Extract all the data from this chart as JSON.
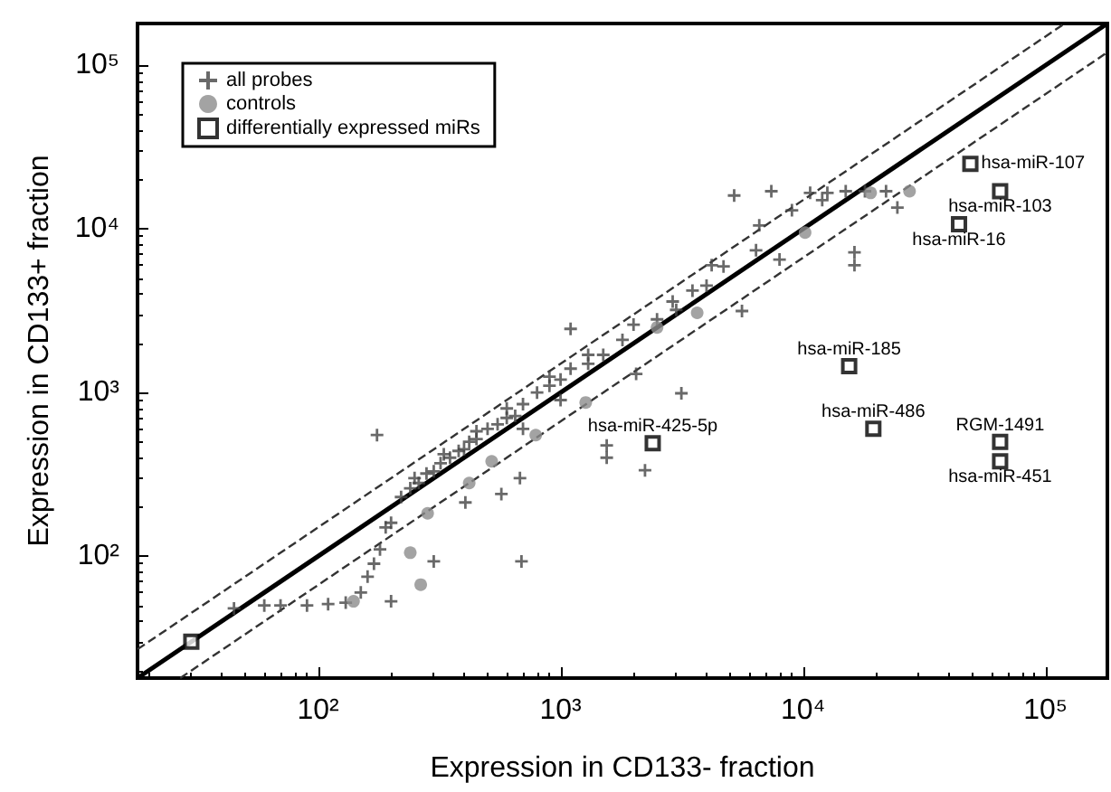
{
  "chart_data": {
    "type": "scatter",
    "xlabel": "Expression in CD133- fraction",
    "ylabel": "Expression in CD133+ fraction",
    "log": "xy",
    "grid": false,
    "legend": "top left",
    "xlim": [
      18,
      180000
    ],
    "ylim": [
      18,
      180000
    ],
    "xticks": [
      {
        "value": 100,
        "label": "10²"
      },
      {
        "value": 1000,
        "label": "10³"
      },
      {
        "value": 10000,
        "label": "10⁴"
      },
      {
        "value": 100000,
        "label": "10⁵"
      }
    ],
    "yticks": [
      {
        "value": 100,
        "label": "10²"
      },
      {
        "value": 1000,
        "label": "10³"
      },
      {
        "value": 10000,
        "label": "10⁴"
      },
      {
        "value": 100000,
        "label": "10⁵"
      }
    ],
    "series": [
      {
        "type": "line",
        "color": "#000000",
        "line_style": "solid",
        "marker": "none",
        "x": [
          18,
          180000
        ],
        "values": [
          18,
          180000
        ]
      },
      {
        "type": "line",
        "color": "#333333",
        "line_style": "dashed",
        "marker": "none",
        "x": [
          18,
          120000
        ],
        "values": [
          27,
          180000
        ]
      },
      {
        "type": "line",
        "color": "#333333",
        "line_style": "dashed",
        "marker": "none",
        "x": [
          27,
          180000
        ],
        "values": [
          18,
          120000
        ]
      },
      {
        "name": "all probes",
        "color": "#444444",
        "marker": "cross",
        "x": [
          45,
          60,
          70,
          90,
          110,
          130,
          150,
          160,
          170,
          180,
          190,
          200,
          220,
          240,
          260,
          280,
          300,
          320,
          350,
          380,
          400,
          420,
          450,
          500,
          550,
          600,
          650,
          700,
          800,
          900,
          1000,
          1100,
          1300,
          1500,
          1800,
          2000,
          2500,
          3000,
          3500,
          4000,
          9000,
          12000,
          15000,
          18000,
          22000,
          1100,
          175,
          300,
          200,
          690,
          405,
          680,
          570,
          1550,
          1550,
          2230,
          2050,
          5200,
          7400,
          6600,
          6400,
          16300,
          16300,
          24500,
          8000,
          5600,
          4700,
          2900,
          12600,
          10700,
          4200,
          3150,
          250,
          330,
          450,
          600,
          900,
          1300,
          700,
          1000
        ],
        "values": [
          48,
          50,
          50,
          50,
          51,
          52,
          60,
          75,
          90,
          110,
          150,
          160,
          230,
          260,
          280,
          320,
          330,
          370,
          400,
          440,
          450,
          500,
          520,
          600,
          640,
          700,
          720,
          850,
          1000,
          1100,
          1200,
          1400,
          1500,
          1700,
          2100,
          2600,
          2800,
          3200,
          4200,
          4500,
          13000,
          15000,
          17000,
          17000,
          17000,
          2450,
          550,
          93,
          53,
          93,
          213,
          300,
          240,
          475,
          400,
          335,
          1300,
          16000,
          17000,
          10500,
          7400,
          7200,
          6000,
          13500,
          6500,
          3150,
          5900,
          3600,
          16600,
          16600,
          6000,
          990,
          300,
          420,
          580,
          800,
          1250,
          1700,
          600,
          900
        ]
      },
      {
        "name": "controls",
        "color": "#8c8c8c",
        "marker": "circle",
        "x": [
          265,
          240,
          283,
          420,
          520,
          790,
          1270,
          140,
          3660,
          10200,
          19000,
          27500,
          2500
        ],
        "values": [
          67,
          105,
          183,
          280,
          380,
          550,
          870,
          53,
          3070,
          9500,
          16600,
          17000,
          2500
        ]
      },
      {
        "name": "differentially expressed miRs",
        "color": "#000000",
        "marker": "square",
        "x": [
          49000,
          65000,
          44000,
          15500,
          19500,
          2400,
          65000,
          65000,
          30
        ],
        "values": [
          25000,
          17000,
          10700,
          1450,
          600,
          490,
          500,
          380,
          30
        ]
      }
    ],
    "annotations": [
      {
        "text": "hsa-miR-107",
        "x": 49000,
        "y": 25000
      },
      {
        "text": "hsa-miR-103",
        "x": 65000,
        "y": 17000
      },
      {
        "text": "hsa-miR-16",
        "x": 44000,
        "y": 10700
      },
      {
        "text": "hsa-miR-185",
        "x": 15500,
        "y": 1450
      },
      {
        "text": "hsa-miR-486",
        "x": 19500,
        "y": 600
      },
      {
        "text": "hsa-miR-425-5p",
        "x": 2400,
        "y": 490
      },
      {
        "text": "RGM-1491",
        "x": 65000,
        "y": 500
      },
      {
        "text": "hsa-miR-451",
        "x": 65000,
        "y": 380
      }
    ]
  }
}
